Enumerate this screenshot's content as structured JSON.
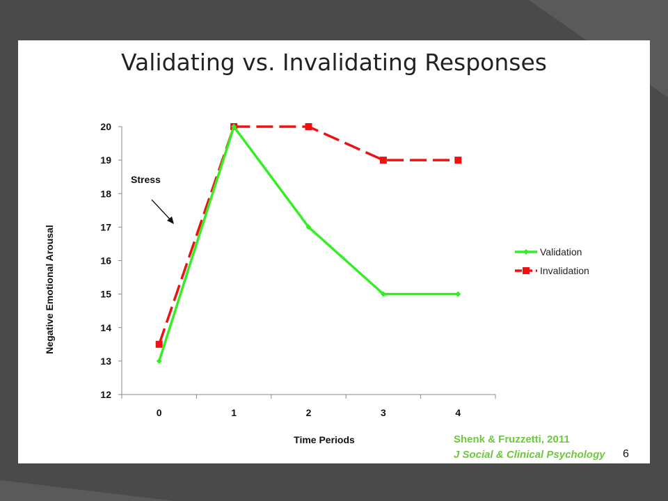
{
  "slide": {
    "title": "Validating vs. Invalidating Responses",
    "citation_line1": "Shenk & Fruzzetti, 2011",
    "citation_line2": "J Social & Clinical Psychology",
    "page_number": "6"
  },
  "colors": {
    "background": "#4a4a4a",
    "validation": "#33ee22",
    "invalidation": "#ee1111",
    "citation": "#6cc83c"
  },
  "chart_data": {
    "type": "line",
    "title": "",
    "xlabel": "Time Periods",
    "ylabel": "Negative Emotional Arousal",
    "categories": [
      "0",
      "1",
      "2",
      "3",
      "4"
    ],
    "ylim": [
      12,
      20
    ],
    "yticks": [
      "12",
      "13",
      "14",
      "15",
      "16",
      "17",
      "18",
      "19",
      "20"
    ],
    "grid": false,
    "legend_position": "right",
    "series": [
      {
        "name": "Validation",
        "values": [
          13,
          20,
          17,
          15,
          15
        ],
        "color": "#33ee22",
        "style": "solid",
        "marker": "diamond"
      },
      {
        "name": "Invalidation",
        "values": [
          13.5,
          20,
          20,
          19,
          19
        ],
        "color": "#ee1111",
        "style": "dashed",
        "marker": "square"
      }
    ],
    "annotations": [
      {
        "text": "Stress"
      }
    ]
  }
}
